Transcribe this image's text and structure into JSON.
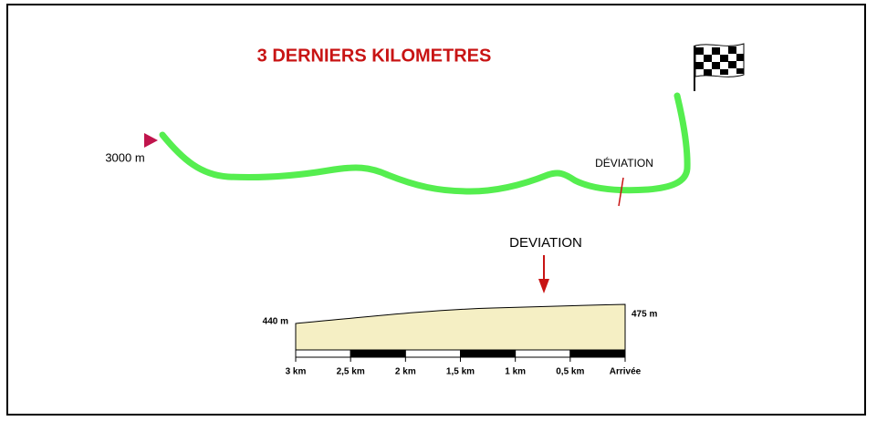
{
  "title": "3 DERNIERS KILOMETRES",
  "map": {
    "start_label": "3000 m",
    "deviation_label": "DÉVIATION"
  },
  "profile": {
    "deviation_label": "DEVIATION",
    "start_altitude": "440 m",
    "finish_altitude": "475 m",
    "distance_labels": [
      "3 km",
      "2,5 km",
      "2 km",
      "1,5 km",
      "1 km",
      "0,5 km",
      "Arrivée"
    ]
  }
}
